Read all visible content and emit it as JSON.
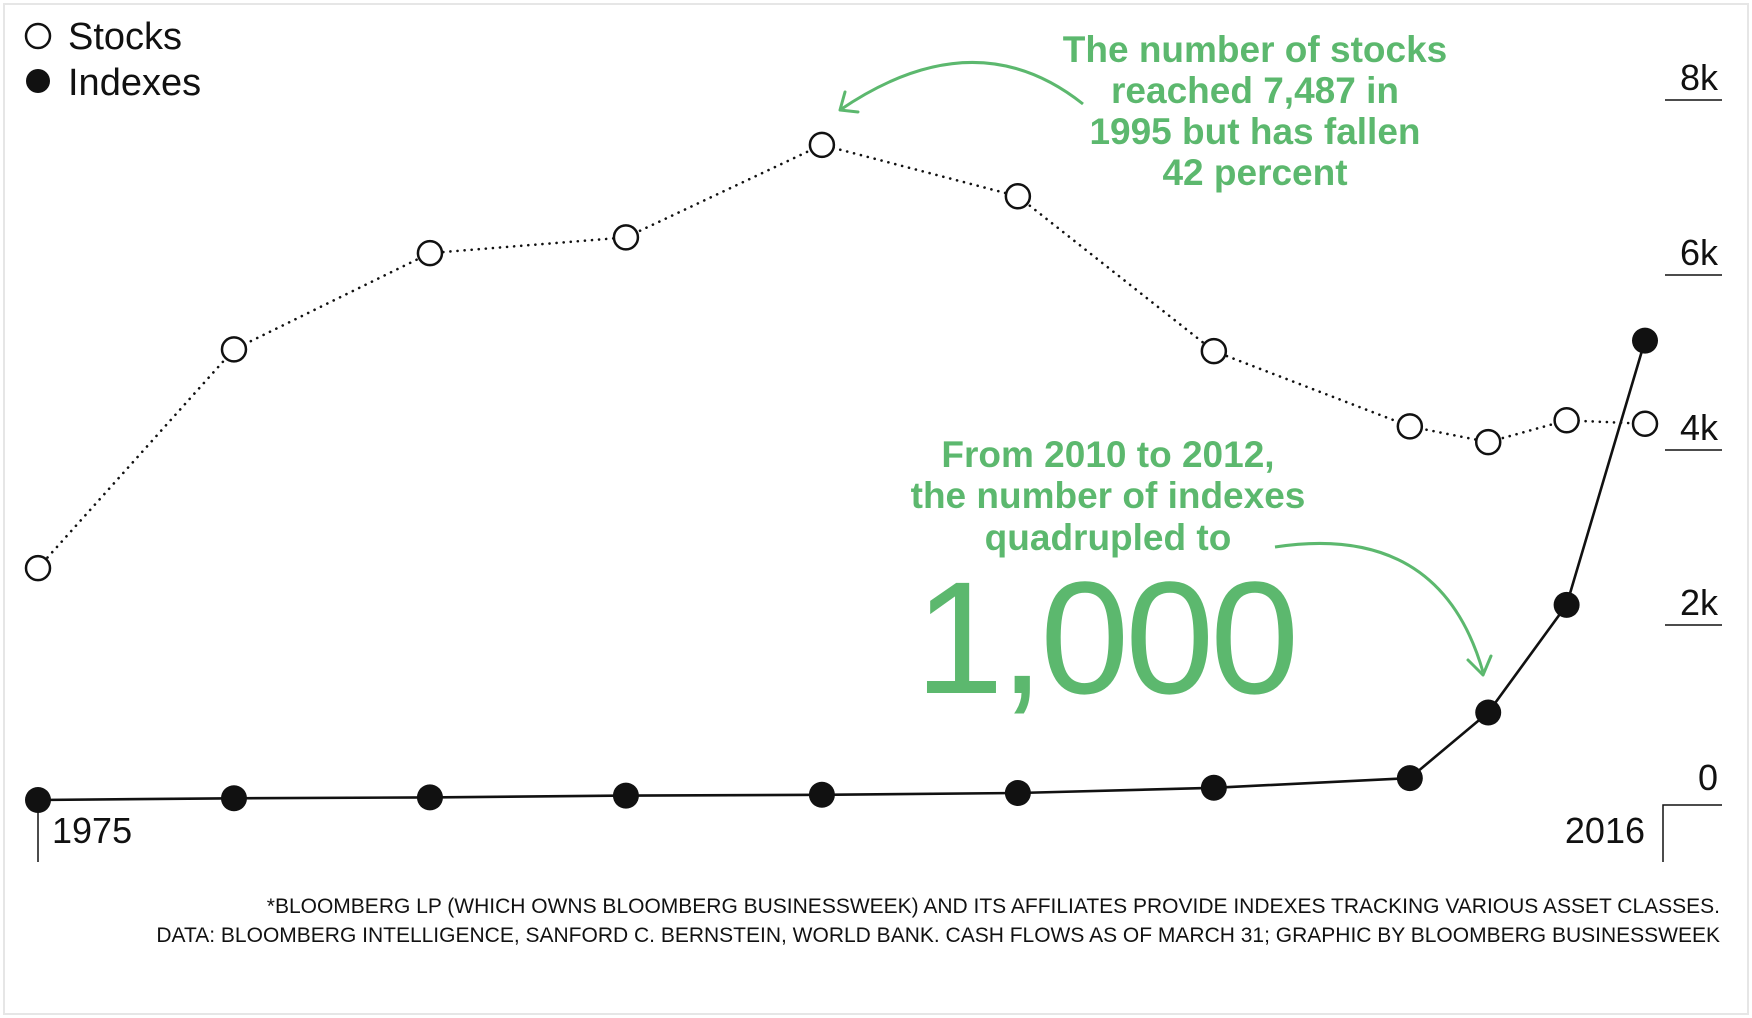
{
  "chart_data": {
    "type": "line",
    "title": "",
    "xlabel": "",
    "ylabel": "",
    "x": [
      1975,
      1980,
      1985,
      1990,
      1995,
      2000,
      2005,
      2010,
      2012,
      2014,
      2016
    ],
    "x_tick_labels": [
      "1975",
      "2016"
    ],
    "y_ticks": [
      {
        "value": 0,
        "label": "0"
      },
      {
        "value": 2000,
        "label": "2k"
      },
      {
        "value": 4000,
        "label": "4k"
      },
      {
        "value": 6000,
        "label": "6k"
      },
      {
        "value": 8000,
        "label": "8k"
      }
    ],
    "ylim": [
      0,
      8000
    ],
    "grid": false,
    "legend_position": "top-left",
    "series": [
      {
        "name": "Stocks",
        "style": "dotted",
        "marker": "open-circle",
        "values": [
          2650,
          5150,
          6250,
          6430,
          7487,
          6900,
          5130,
          4270,
          4090,
          4340,
          4300
        ]
      },
      {
        "name": "Indexes",
        "style": "solid",
        "marker": "filled-circle",
        "values": [
          0,
          20,
          30,
          50,
          60,
          80,
          140,
          250,
          1000,
          2230,
          5250
        ]
      }
    ],
    "annotations": [
      {
        "lines": [
          "The number of stocks",
          "reached 7,487 in",
          "1995 but has fallen",
          "42 percent"
        ]
      },
      {
        "lines": [
          "From 2010 to 2012,",
          "the number of indexes",
          "quadrupled to"
        ],
        "big": "1,000"
      }
    ]
  },
  "footnotes": [
    "*BLOOMBERG LP (WHICH OWNS BLOOMBERG BUSINESSWEEK) AND ITS AFFILIATES PROVIDE INDEXES TRACKING VARIOUS ASSET CLASSES.",
    "DATA: BLOOMBERG INTELLIGENCE, SANFORD C. BERNSTEIN, WORLD BANK. CASH FLOWS AS OF MARCH 31; GRAPHIC  BY BLOOMBERG BUSINESSWEEK"
  ],
  "colors": {
    "accent": "#5cb86e",
    "ink": "#111111",
    "frame": "#e6e6e6"
  }
}
